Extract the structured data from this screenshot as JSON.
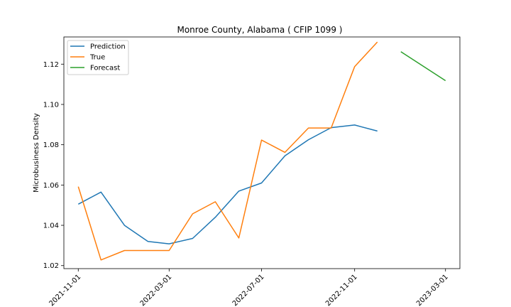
{
  "chart_data": {
    "type": "line",
    "title": "Monroe County, Alabama ( CFIP 1099 )",
    "xlabel": "",
    "ylabel": "Microbusiness Density",
    "x_ticks": [
      "2021-11-01",
      "2022-03-01",
      "2022-07-01",
      "2022-11-01",
      "2023-03-01"
    ],
    "y_ticks": [
      "1.02",
      "1.04",
      "1.06",
      "1.08",
      "1.10",
      "1.12"
    ],
    "ylim": [
      1.0185,
      1.1335
    ],
    "xlim": [
      "2021-10-13",
      "2023-03-20"
    ],
    "grid": false,
    "legend_position": "top-left",
    "series": [
      {
        "name": "Prediction",
        "color": "#1f77b4",
        "x": [
          "2021-11-01",
          "2021-12-01",
          "2022-01-01",
          "2022-02-01",
          "2022-03-01",
          "2022-04-01",
          "2022-05-01",
          "2022-06-01",
          "2022-07-01",
          "2022-08-01",
          "2022-09-01",
          "2022-10-01",
          "2022-11-01",
          "2022-12-01"
        ],
        "y": [
          1.0505,
          1.0565,
          1.04,
          1.032,
          1.0308,
          1.0335,
          1.044,
          1.057,
          1.061,
          1.0745,
          1.0825,
          1.0885,
          1.0898,
          1.0868
        ]
      },
      {
        "name": "True",
        "color": "#ff7f0e",
        "x": [
          "2021-11-01",
          "2021-12-01",
          "2022-01-01",
          "2022-02-01",
          "2022-03-01",
          "2022-04-01",
          "2022-05-01",
          "2022-06-01",
          "2022-07-01",
          "2022-08-01",
          "2022-09-01",
          "2022-10-01",
          "2022-11-01",
          "2022-12-01"
        ],
        "y": [
          1.0592,
          1.0228,
          1.0275,
          1.0275,
          1.0275,
          1.0457,
          1.0517,
          1.0337,
          1.0823,
          1.0762,
          1.0883,
          1.0883,
          1.1188,
          1.131
        ]
      },
      {
        "name": "Forecast",
        "color": "#2ca02c",
        "x": [
          "2023-01-01",
          "2023-03-01"
        ],
        "y": [
          1.1262,
          1.1118
        ]
      }
    ]
  }
}
